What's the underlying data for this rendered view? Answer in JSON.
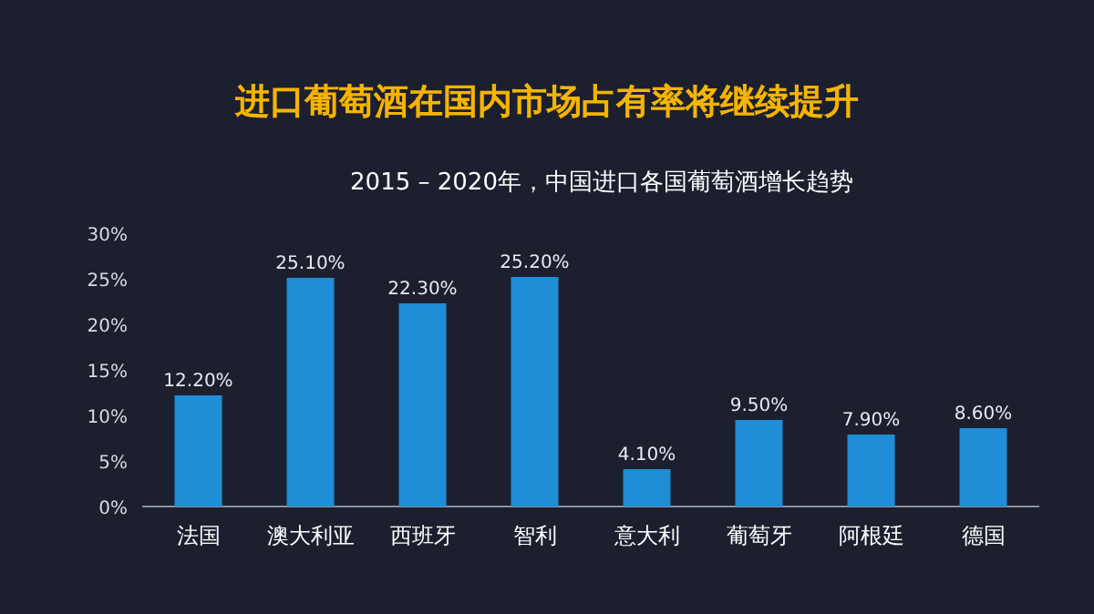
{
  "chart_data": {
    "type": "bar",
    "title": "进口葡萄酒在国内市场占有率将继续提升",
    "subtitle": "2015 – 2020年，中国进口各国葡萄酒增长趋势",
    "categories": [
      "法国",
      "澳大利亚",
      "西班牙",
      "智利",
      "意大利",
      "葡萄牙",
      "阿根廷",
      "德国"
    ],
    "values": [
      12.2,
      25.1,
      22.3,
      25.2,
      4.1,
      9.5,
      7.9,
      8.6
    ],
    "value_labels": [
      "12.20%",
      "25.10%",
      "22.30%",
      "25.20%",
      "4.10%",
      "9.50%",
      "7.90%",
      "8.60%"
    ],
    "color": "#1f8ed6",
    "ylim": [
      0,
      30
    ],
    "yticks": [
      {
        "value": 0,
        "label": "0%"
      },
      {
        "value": 5,
        "label": "5%"
      },
      {
        "value": 10,
        "label": "10%"
      },
      {
        "value": 15,
        "label": "15%"
      },
      {
        "value": 20,
        "label": "20%"
      },
      {
        "value": 25,
        "label": "25%"
      },
      {
        "value": 30,
        "label": "30%"
      }
    ]
  }
}
